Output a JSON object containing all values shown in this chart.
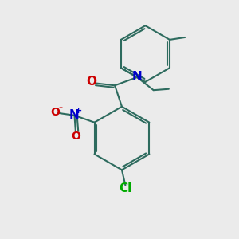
{
  "bg_color": "#ebebeb",
  "bond_color": "#2d6b5e",
  "bond_width": 1.5,
  "atom_colors": {
    "N": "#0000cc",
    "O": "#cc0000",
    "Cl": "#00aa00",
    "C": "#000000"
  },
  "label_font_size": 11
}
